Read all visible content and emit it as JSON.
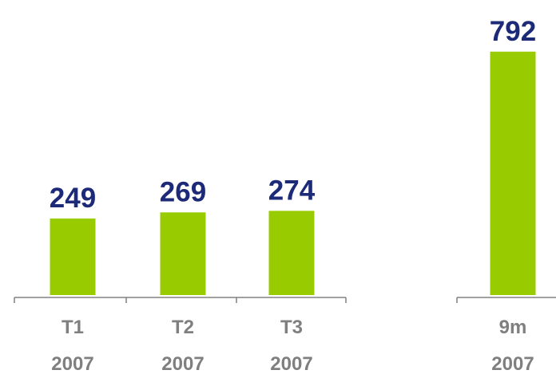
{
  "chart_data": {
    "type": "bar",
    "categories": [
      "T1 2007",
      "T2 2007",
      "T3 2007",
      "9m 2007"
    ],
    "values": [
      249,
      269,
      274,
      792
    ],
    "color": "#99cc00",
    "label_color": "#1c2a78",
    "ylim": [
      0,
      960
    ]
  }
}
